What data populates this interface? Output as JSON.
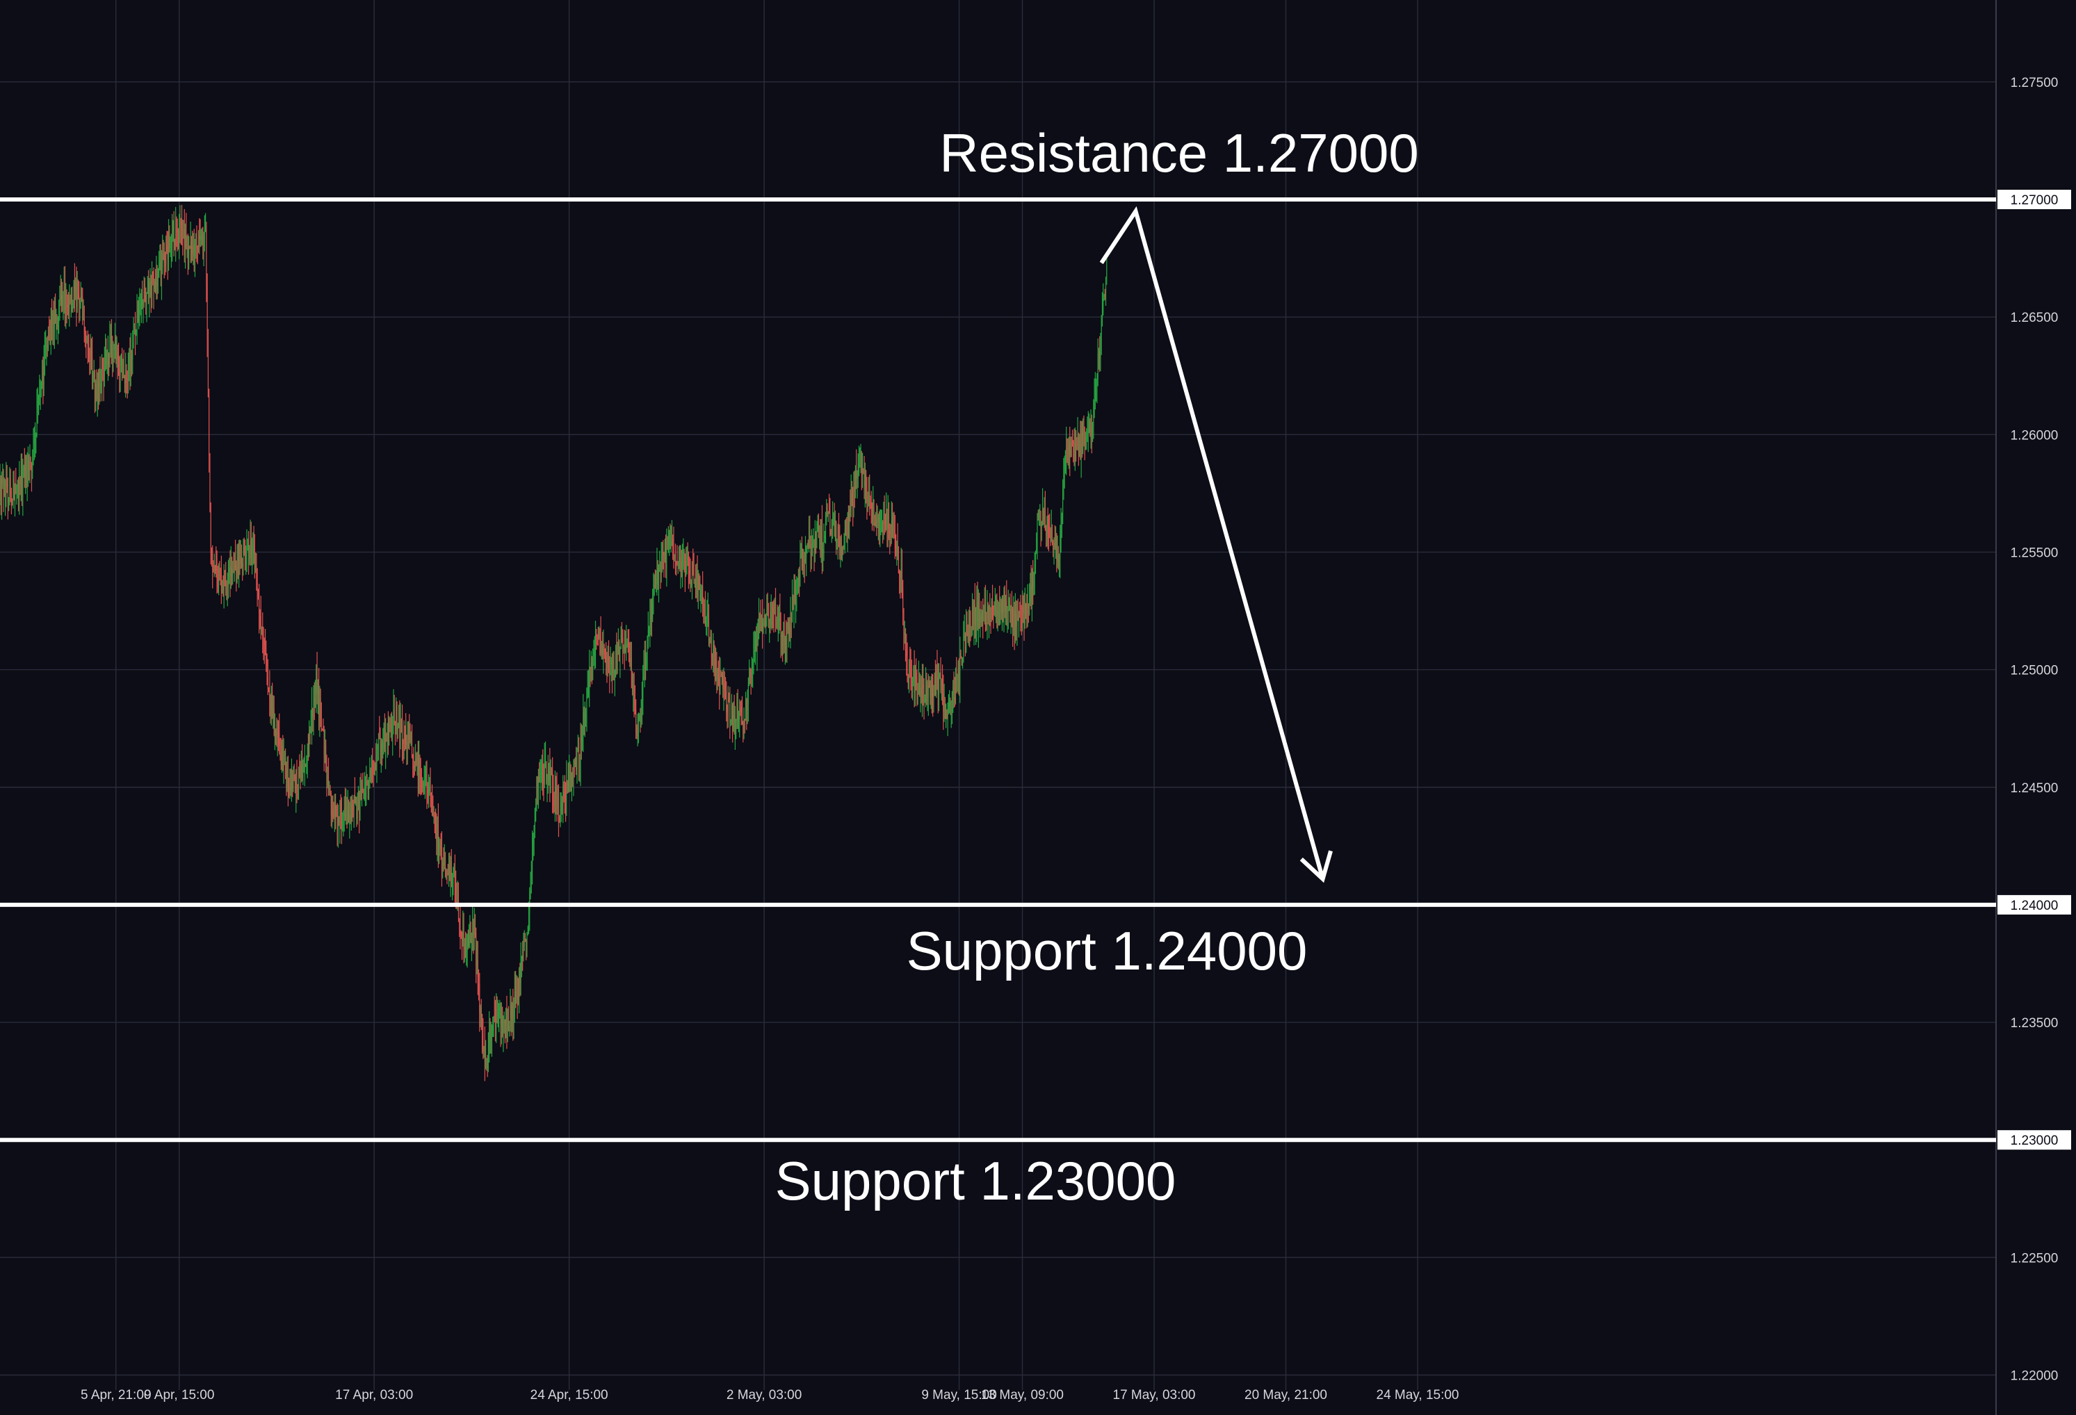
{
  "chart_data": {
    "type": "candlestick",
    "colors": {
      "background": "#0c0d16",
      "grid": "#2a2c3a",
      "up": "#26a641",
      "down": "#e0524f",
      "level_line": "#ffffff",
      "arrow": "#ffffff",
      "axis_text": "#d6d7dc"
    },
    "y_axis": {
      "position": "right",
      "ticks": [
        "1.27500",
        "1.27000",
        "1.26500",
        "1.26000",
        "1.25500",
        "1.25000",
        "1.24500",
        "1.24000",
        "1.23500",
        "1.23000",
        "1.22500",
        "1.22000"
      ],
      "range": [
        1.22,
        1.2785
      ]
    },
    "x_axis": {
      "tick_labels": [
        "5 Apr, 21:00",
        "9 Apr, 15:00",
        "17 Apr, 03:00",
        "24 Apr, 15:00",
        "2 May, 03:00",
        "9 May, 15:00",
        "13 May, 09:00",
        "17 May, 03:00",
        "20 May, 21:00",
        "24 May, 15:00"
      ],
      "tick_index": [
        22,
        34,
        71,
        108,
        145,
        182,
        194,
        219,
        244,
        269
      ]
    },
    "levels": [
      {
        "value": 1.27,
        "label": "1.27000",
        "annotation": "Resistance 1.27000"
      },
      {
        "value": 1.24,
        "label": "1.24000",
        "annotation": "Support 1.24000"
      },
      {
        "value": 1.23,
        "label": "1.23000",
        "annotation": "Support 1.23000"
      }
    ],
    "projection": [
      {
        "i": 209,
        "price": 1.2673
      },
      {
        "i": 215.5,
        "price": 1.2695
      },
      {
        "i": 251,
        "price": 1.2411
      }
    ],
    "candles": {
      "fields": [
        "open",
        "high",
        "low",
        "close"
      ],
      "start": "4 Apr",
      "interval_hours": 6,
      "path": [
        [
          0,
          1.2578
        ],
        [
          3,
          1.2575
        ],
        [
          6,
          1.2588
        ],
        [
          9,
          1.2641
        ],
        [
          12,
          1.2658
        ],
        [
          15,
          1.266
        ],
        [
          18,
          1.2618
        ],
        [
          21,
          1.2638
        ],
        [
          24,
          1.2625
        ],
        [
          27,
          1.2659
        ],
        [
          30,
          1.2668
        ],
        [
          33,
          1.2687
        ],
        [
          36,
          1.268
        ],
        [
          39,
          1.2685
        ],
        [
          40,
          1.2545
        ],
        [
          42,
          1.2538
        ],
        [
          45,
          1.2546
        ],
        [
          48,
          1.2552
        ],
        [
          52,
          1.2475
        ],
        [
          55,
          1.245
        ],
        [
          58,
          1.246
        ],
        [
          60,
          1.2495
        ],
        [
          63,
          1.2437
        ],
        [
          66,
          1.2438
        ],
        [
          69,
          1.2445
        ],
        [
          72,
          1.2468
        ],
        [
          75,
          1.248
        ],
        [
          78,
          1.2467
        ],
        [
          81,
          1.245
        ],
        [
          84,
          1.2418
        ],
        [
          86,
          1.2412
        ],
        [
          88,
          1.2385
        ],
        [
          90,
          1.239
        ],
        [
          92,
          1.233
        ],
        [
          94,
          1.2355
        ],
        [
          96,
          1.235
        ],
        [
          98,
          1.236
        ],
        [
          100,
          1.239
        ],
        [
          102,
          1.2455
        ],
        [
          104,
          1.2458
        ],
        [
          106,
          1.244
        ],
        [
          108,
          1.2455
        ],
        [
          110,
          1.2465
        ],
        [
          113,
          1.2515
        ],
        [
          116,
          1.25
        ],
        [
          119,
          1.2515
        ],
        [
          121,
          1.247
        ],
        [
          124,
          1.2535
        ],
        [
          127,
          1.2553
        ],
        [
          130,
          1.2545
        ],
        [
          133,
          1.2535
        ],
        [
          136,
          1.2498
        ],
        [
          139,
          1.248
        ],
        [
          141,
          1.2478
        ],
        [
          144,
          1.252
        ],
        [
          147,
          1.2525
        ],
        [
          149,
          1.251
        ],
        [
          152,
          1.2545
        ],
        [
          155,
          1.2558
        ],
        [
          156,
          1.2555
        ],
        [
          157,
          1.2565
        ],
        [
          160,
          1.255
        ],
        [
          163,
          1.259
        ],
        [
          166,
          1.2565
        ],
        [
          169,
          1.256
        ],
        [
          171,
          1.254
        ],
        [
          172,
          1.25
        ],
        [
          175,
          1.2488
        ],
        [
          178,
          1.2495
        ],
        [
          180,
          1.248
        ],
        [
          182,
          1.25
        ],
        [
          184,
          1.2522
        ],
        [
          187,
          1.2525
        ],
        [
          190,
          1.253
        ],
        [
          193,
          1.2518
        ],
        [
          196,
          1.2535
        ],
        [
          197,
          1.2565
        ],
        [
          199,
          1.256
        ],
        [
          201,
          1.255
        ],
        [
          202,
          1.259
        ],
        [
          205,
          1.2595
        ],
        [
          207,
          1.2602
        ],
        [
          208,
          1.262
        ],
        [
          210,
          1.267
        ]
      ]
    }
  }
}
